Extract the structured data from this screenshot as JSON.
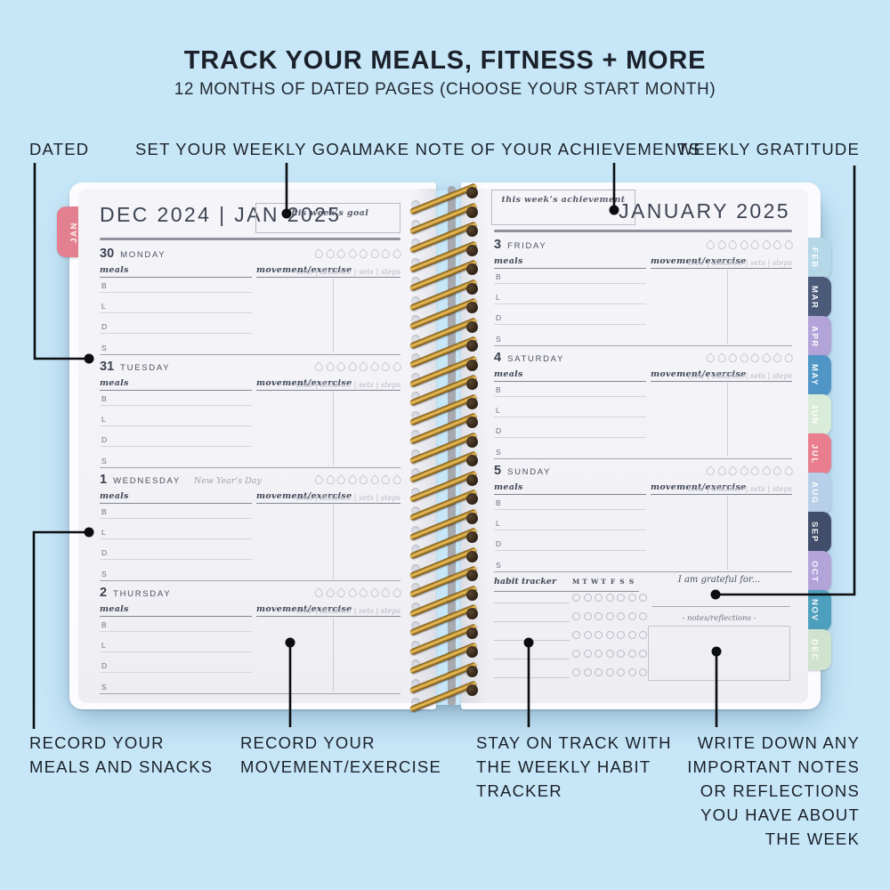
{
  "header": {
    "title": "TRACK YOUR MEALS, FITNESS + MORE",
    "subtitle": "12 MONTHS OF DATED PAGES (CHOOSE YOUR START MONTH)"
  },
  "annotations": {
    "dated": "DATED",
    "weekly_goal": "SET YOUR WEEKLY GOAL",
    "achievements": "MAKE NOTE OF YOUR ACHIEVEMENTS",
    "gratitude": "WEEKLY GRATITUDE",
    "record_meals_lines": [
      "RECORD YOUR",
      "MEALS AND SNACKS"
    ],
    "record_movement_lines": [
      "RECORD YOUR",
      "MOVEMENT/EXERCISE"
    ],
    "habit_lines": [
      "STAY ON TRACK WITH",
      "THE WEEKLY HABIT",
      "TRACKER"
    ],
    "notes_lines": [
      "WRITE DOWN ANY",
      "IMPORTANT NOTES",
      "OR REFLECTIONS",
      "YOU HAVE ABOUT",
      "THE WEEK"
    ]
  },
  "planner": {
    "left_page": {
      "tab": {
        "label": "JAN",
        "color": "#e2808f"
      },
      "header": "DEC 2024 | JAN 2025",
      "goal_label": "this week’s goal",
      "days": [
        {
          "date": "30",
          "name": "MONDAY",
          "note": ""
        },
        {
          "date": "31",
          "name": "TUESDAY",
          "note": ""
        },
        {
          "date": "1",
          "name": "WEDNESDAY",
          "note": "New Year’s Day"
        },
        {
          "date": "2",
          "name": "THURSDAY",
          "note": ""
        }
      ]
    },
    "right_page": {
      "header": "JANUARY 2025",
      "achievement_label": "this week’s achievement",
      "days": [
        {
          "date": "3",
          "name": "FRIDAY",
          "note": ""
        },
        {
          "date": "4",
          "name": "SATURDAY",
          "note": ""
        },
        {
          "date": "5",
          "name": "SUNDAY",
          "note": ""
        }
      ],
      "habit_tracker": {
        "label": "habit tracker",
        "day_letters": [
          "M",
          "T",
          "W",
          "T",
          "F",
          "S",
          "S"
        ],
        "rows": 5
      },
      "gratitude_label": "I am grateful for...",
      "notes_label": "-  notes/reflections  -"
    },
    "day_template": {
      "meals_label": "meals",
      "movement_label": "movement/exercise",
      "stats_label": "time | distance | sets | steps",
      "meal_letters": [
        "B",
        "L",
        "D",
        "S"
      ],
      "water_droplets": 8
    },
    "month_tabs_right": [
      {
        "label": "FEB",
        "color": "#b5d7e7"
      },
      {
        "label": "MAR",
        "color": "#4c5a7a"
      },
      {
        "label": "APR",
        "color": "#b2a3d9"
      },
      {
        "label": "MAY",
        "color": "#4f95c5"
      },
      {
        "label": "JUN",
        "color": "#d9ebd9"
      },
      {
        "label": "JUL",
        "color": "#e87e8e"
      },
      {
        "label": "AUG",
        "color": "#b7cfe8"
      },
      {
        "label": "SEP",
        "color": "#414e6b"
      },
      {
        "label": "OCT",
        "color": "#b2a3d9"
      },
      {
        "label": "NOV",
        "color": "#4da0bd"
      },
      {
        "label": "DEC",
        "color": "#cfe3cf"
      }
    ]
  },
  "colors": {
    "background": "#c7e7f8",
    "ink": "#1b2129",
    "paper": "#f3f3f7",
    "spiral_gold": "#b9882e",
    "annotation_line": "#0b0d10"
  }
}
